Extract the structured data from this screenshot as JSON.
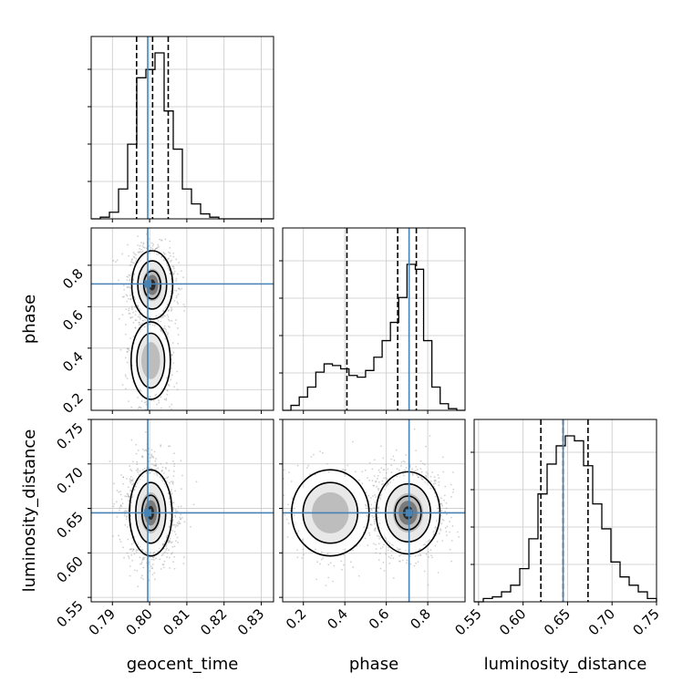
{
  "chart_data": {
    "type": "corner",
    "parameters": [
      "geocent_time",
      "phase",
      "luminosity_distance"
    ],
    "grid": true,
    "truths": {
      "geocent_time": 0.7995,
      "phase": 0.71,
      "luminosity_distance": 0.645
    },
    "quantiles": {
      "geocent_time": [
        0.7965,
        0.8008,
        0.805
      ],
      "phase": [
        0.41,
        0.655,
        0.745
      ],
      "luminosity_distance": [
        0.62,
        0.645,
        0.673
      ]
    },
    "axes": {
      "geocent_time": {
        "range": [
          0.7843,
          0.8333
        ],
        "ticks": [
          0.79,
          0.8,
          0.81,
          0.82,
          0.83
        ],
        "tick_labels": [
          "0.79",
          "0.80",
          "0.81",
          "0.82",
          "0.83"
        ]
      },
      "phase": {
        "range": [
          0.1,
          0.98
        ],
        "ticks": [
          0.2,
          0.4,
          0.6,
          0.8
        ],
        "tick_labels": [
          "0.2",
          "0.4",
          "0.6",
          "0.8"
        ]
      },
      "luminosity_distance": {
        "range": [
          0.545,
          0.75
        ],
        "ticks": [
          0.55,
          0.6,
          0.65,
          0.7,
          0.75
        ],
        "tick_labels": [
          "0.55",
          "0.60",
          "0.65",
          "0.70",
          "0.75"
        ]
      }
    },
    "histograms": {
      "geocent_time": {
        "edges": [
          0.7843,
          0.8333
        ],
        "counts": [
          0,
          0.01,
          0.04,
          0.18,
          0.45,
          0.85,
          0.9,
          1.0,
          0.65,
          0.42,
          0.18,
          0.09,
          0.03,
          0.01,
          0,
          0,
          0,
          0,
          0,
          0
        ]
      },
      "phase": {
        "edges": [
          0.1,
          0.98
        ],
        "counts": [
          0,
          0.03,
          0.08,
          0.14,
          0.23,
          0.28,
          0.27,
          0.25,
          0.21,
          0.2,
          0.24,
          0.32,
          0.42,
          0.53,
          0.68,
          0.88,
          0.85,
          0.42,
          0.14,
          0.04,
          0.01,
          0
        ]
      },
      "luminosity_distance": {
        "edges": [
          0.545,
          0.75
        ],
        "counts": [
          0,
          0.02,
          0.03,
          0.06,
          0.1,
          0.2,
          0.38,
          0.65,
          0.83,
          0.94,
          1.0,
          0.97,
          0.82,
          0.59,
          0.44,
          0.24,
          0.15,
          0.1,
          0.06,
          0.02
        ]
      }
    },
    "pairs": [
      {
        "x": "geocent_time",
        "y": "phase",
        "modes": [
          {
            "x": 0.8007,
            "y": 0.705,
            "sx": 0.0025,
            "sy": 0.075,
            "w": 0.72
          },
          {
            "x": 0.8003,
            "y": 0.34,
            "sx": 0.0024,
            "sy": 0.085,
            "w": 0.28
          }
        ]
      },
      {
        "x": "geocent_time",
        "y": "luminosity_distance",
        "modes": [
          {
            "x": 0.8003,
            "y": 0.645,
            "sx": 0.0026,
            "sy": 0.022,
            "w": 1.0
          }
        ]
      },
      {
        "x": "phase",
        "y": "luminosity_distance",
        "modes": [
          {
            "x": 0.705,
            "y": 0.645,
            "sx": 0.07,
            "sy": 0.021,
            "w": 0.72
          },
          {
            "x": 0.33,
            "y": 0.645,
            "sx": 0.085,
            "sy": 0.022,
            "w": 0.28
          }
        ]
      }
    ],
    "colors": {
      "truth": "#4682b4",
      "lines": "#000000",
      "grid": "#c8c8c8",
      "points": "#9a9a9a",
      "density_dark": "#000000"
    }
  }
}
